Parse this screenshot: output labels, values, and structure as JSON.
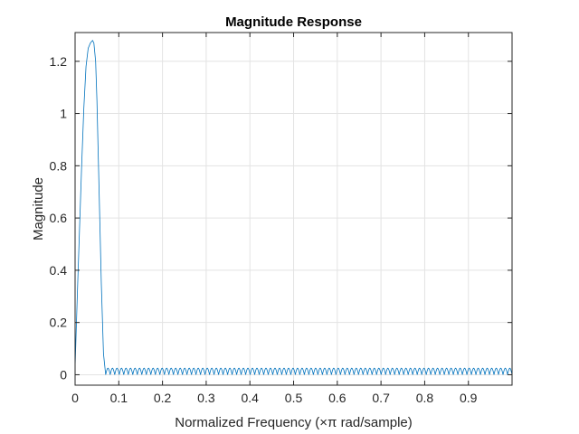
{
  "chart_data": {
    "type": "line",
    "title": "Magnitude Response",
    "xlabel": "Normalized Frequency (×π rad/sample)",
    "ylabel": "Magnitude",
    "xlim": [
      0,
      0.9999
    ],
    "ylim": [
      -0.04,
      1.31
    ],
    "grid": true,
    "box": true,
    "x_ticks": [
      0,
      0.1,
      0.2,
      0.3,
      0.4,
      0.5,
      0.6,
      0.7,
      0.8,
      0.9
    ],
    "x_tick_labels": [
      "0",
      "0.1",
      "0.2",
      "0.3",
      "0.4",
      "0.5",
      "0.6",
      "0.7",
      "0.8",
      "0.9"
    ],
    "y_ticks": [
      0,
      0.2,
      0.4,
      0.6,
      0.8,
      1,
      1.2
    ],
    "y_tick_labels": [
      "0",
      "0.2",
      "0.4",
      "0.6",
      "0.8",
      "1",
      "1.2"
    ],
    "series": [
      {
        "color": "#0072BD",
        "x": [
          0,
          0.005,
          0.01,
          0.015,
          0.02,
          0.025,
          0.03,
          0.035,
          0.04,
          0.043,
          0.047,
          0.05,
          0.055,
          0.06,
          0.065,
          0.07
        ],
        "y": [
          0.03,
          0.3,
          0.55,
          0.8,
          1.02,
          1.18,
          1.25,
          1.27,
          1.28,
          1.27,
          1.2,
          1.05,
          0.7,
          0.35,
          0.08,
          0.0
        ],
        "stopband": {
          "x_start": 0.07,
          "x_end": 0.9999,
          "ripple_max": 0.025,
          "ripple_min": 0.0,
          "ripple_count": 90
        }
      }
    ]
  }
}
